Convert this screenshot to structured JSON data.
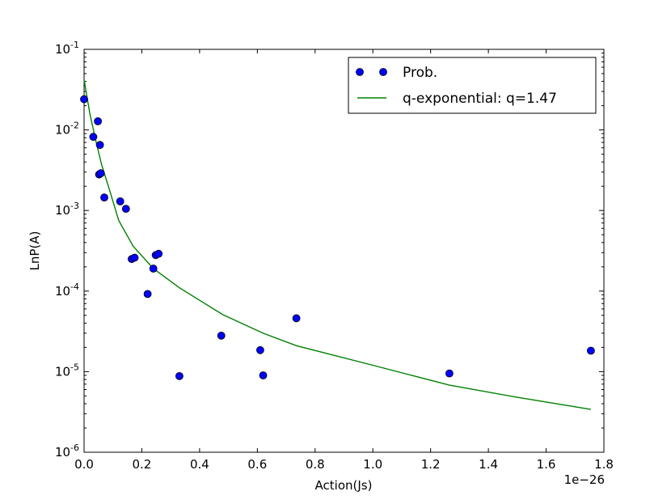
{
  "chart_data": {
    "type": "scatter",
    "xlabel": "Action(Js)",
    "ylabel": "LnP(A)",
    "x_offset_label": "1e−26",
    "xlim": [
      0.0,
      1.8
    ],
    "ylim_log10": [
      -6,
      -1
    ],
    "x_ticks": [
      0.0,
      0.2,
      0.4,
      0.6,
      0.8,
      1.0,
      1.2,
      1.4,
      1.6,
      1.8
    ],
    "x_tick_labels": [
      "0.0",
      "0.2",
      "0.4",
      "0.6",
      "0.8",
      "1.0",
      "1.2",
      "1.4",
      "1.6",
      "1.8"
    ],
    "y_ticks_log10": [
      -6,
      -5,
      -4,
      -3,
      -2,
      -1
    ],
    "y_tick_labels": [
      {
        "base": "10",
        "exp": "-6"
      },
      {
        "base": "10",
        "exp": "-5"
      },
      {
        "base": "10",
        "exp": "-4"
      },
      {
        "base": "10",
        "exp": "-3"
      },
      {
        "base": "10",
        "exp": "-2"
      },
      {
        "base": "10",
        "exp": "-1"
      }
    ],
    "legend_position": "top-right",
    "series": [
      {
        "name": "Prob.",
        "kind": "scatter",
        "color": "#0000ff",
        "points": [
          {
            "x": 0.0,
            "y": 0.024
          },
          {
            "x": 0.032,
            "y": 0.0082
          },
          {
            "x": 0.048,
            "y": 0.0128
          },
          {
            "x": 0.052,
            "y": 0.0028
          },
          {
            "x": 0.055,
            "y": 0.0065
          },
          {
            "x": 0.058,
            "y": 0.0029
          },
          {
            "x": 0.07,
            "y": 0.00145
          },
          {
            "x": 0.125,
            "y": 0.0013
          },
          {
            "x": 0.145,
            "y": 0.00105
          },
          {
            "x": 0.165,
            "y": 0.00025
          },
          {
            "x": 0.175,
            "y": 0.00026
          },
          {
            "x": 0.22,
            "y": 9.2e-05
          },
          {
            "x": 0.24,
            "y": 0.00019
          },
          {
            "x": 0.248,
            "y": 0.00028
          },
          {
            "x": 0.258,
            "y": 0.00029
          },
          {
            "x": 0.33,
            "y": 8.8e-06
          },
          {
            "x": 0.475,
            "y": 2.8e-05
          },
          {
            "x": 0.61,
            "y": 1.85e-05
          },
          {
            "x": 0.62,
            "y": 9e-06
          },
          {
            "x": 0.735,
            "y": 4.6e-05
          },
          {
            "x": 1.265,
            "y": 9.5e-06
          },
          {
            "x": 1.755,
            "y": 1.82e-05
          }
        ]
      },
      {
        "name": "q-exponential: q=1.47",
        "kind": "line",
        "color": "#008000",
        "points": [
          {
            "x": 0.0,
            "y": 0.042
          },
          {
            "x": 0.02,
            "y": 0.016
          },
          {
            "x": 0.04,
            "y": 0.0075
          },
          {
            "x": 0.06,
            "y": 0.0038
          },
          {
            "x": 0.09,
            "y": 0.0017
          },
          {
            "x": 0.12,
            "y": 0.00075
          },
          {
            "x": 0.17,
            "y": 0.00036
          },
          {
            "x": 0.24,
            "y": 0.00019
          },
          {
            "x": 0.33,
            "y": 0.00011
          },
          {
            "x": 0.48,
            "y": 5.1e-05
          },
          {
            "x": 0.62,
            "y": 3e-05
          },
          {
            "x": 0.735,
            "y": 2.1e-05
          },
          {
            "x": 1.0,
            "y": 1.2e-05
          },
          {
            "x": 1.265,
            "y": 6.8e-06
          },
          {
            "x": 1.5,
            "y": 4.8e-06
          },
          {
            "x": 1.755,
            "y": 3.4e-06
          }
        ]
      }
    ]
  }
}
